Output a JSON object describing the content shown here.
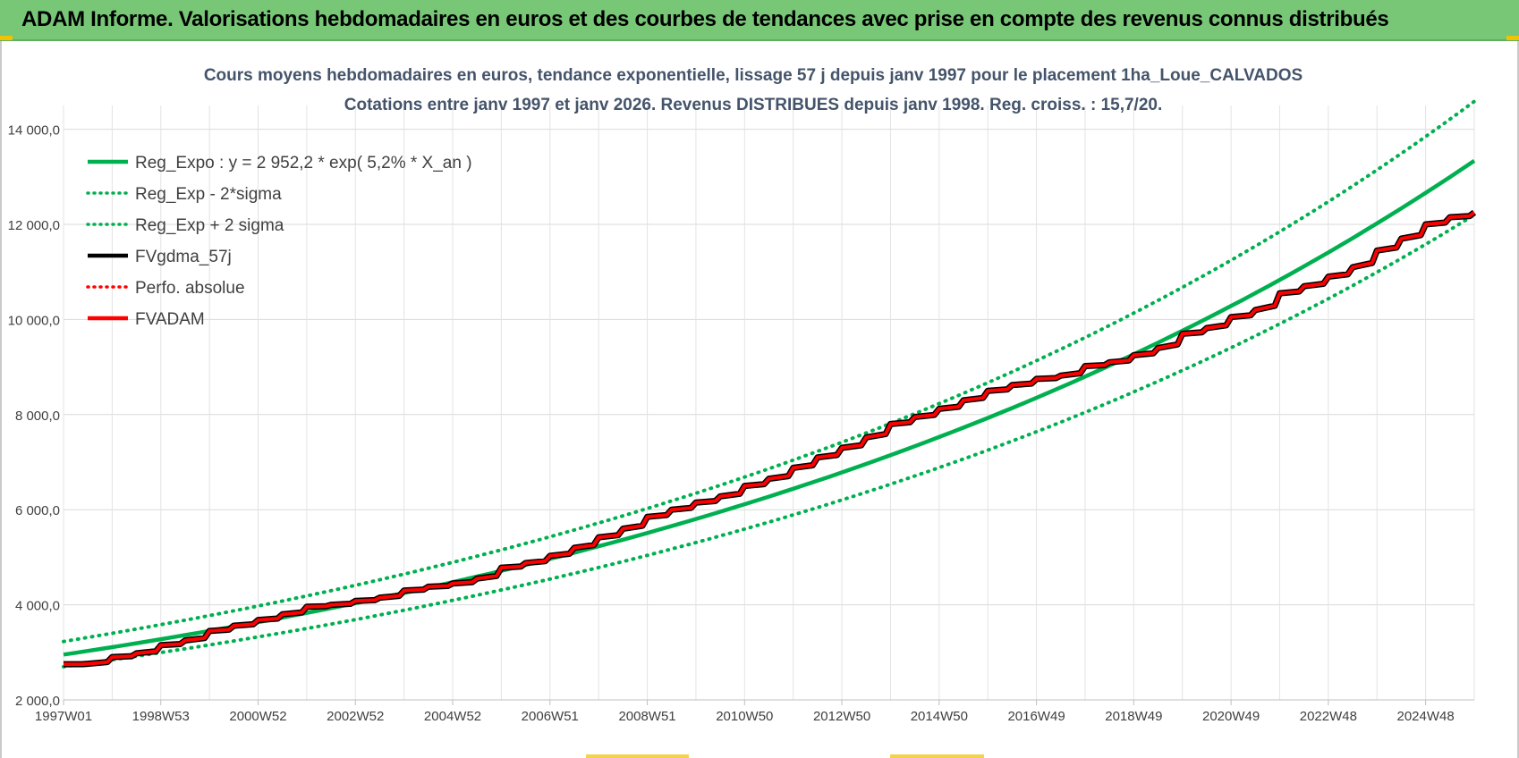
{
  "banner": {
    "title": "ADAM Informe. Valorisations hebdomadaires en euros et des courbes de tendances avec prise en compte des revenus connus distribués",
    "background": "#77c777"
  },
  "chart_data": {
    "type": "line",
    "title": "Cours moyens hebdomadaires en euros, tendance exponentielle, lissage 57 j depuis janv 1997 pour le placement 1ha_Loue_CALVADOS",
    "subtitle": "Cotations entre janv 1997 et janv 2026. Revenus DISTRIBUES depuis janv 1998. Reg. croiss. : 15,7/20.",
    "xlabel": "",
    "ylabel": "",
    "ylim": [
      2000,
      14500
    ],
    "xlim": [
      1997.0,
      2026.0
    ],
    "grid": true,
    "legend_position": "top-left",
    "y_ticks": [
      "2 000,0",
      "4 000,0",
      "6 000,0",
      "8 000,0",
      "10 000,0",
      "12 000,0",
      "14 000,0"
    ],
    "y_tick_values": [
      2000,
      4000,
      6000,
      8000,
      10000,
      12000,
      14000
    ],
    "x_ticks": [
      "1997W01",
      "1998W53",
      "2000W52",
      "2002W52",
      "2004W52",
      "2006W51",
      "2008W51",
      "2010W50",
      "2012W50",
      "2014W50",
      "2016W49",
      "2018W49",
      "2020W49",
      "2022W48",
      "2024W48"
    ],
    "x_tick_values": [
      1997.0,
      1999.0,
      2001.0,
      2003.0,
      2005.0,
      2007.0,
      2009.0,
      2011.0,
      2013.0,
      2015.0,
      2017.0,
      2019.0,
      2021.0,
      2023.0,
      2025.0
    ],
    "regression": {
      "a": 2952.2,
      "rate": 0.052
    },
    "series": [
      {
        "name": "Reg_Expo : y = 2 952,2 * exp( 5,2% *  X_an )",
        "color": "#00b050",
        "style": "solid",
        "x": [
          1997.0,
          2001.0,
          2005.0,
          2009.0,
          2013.0,
          2017.0,
          2021.0,
          2026.0
        ],
        "values": [
          2952,
          3629,
          4461,
          5485,
          6743,
          8290,
          10191,
          13260
        ]
      },
      {
        "name": "Reg_Exp - 2*sigma",
        "color": "#00b050",
        "style": "dotted",
        "x": [
          1997.0,
          2001.0,
          2005.0,
          2009.0,
          2013.0,
          2017.0,
          2021.0,
          2026.0
        ],
        "values": [
          2700,
          3319,
          4080,
          5016,
          6166,
          7581,
          9319,
          12126
        ]
      },
      {
        "name": "Reg_Exp + 2 sigma",
        "color": "#00b050",
        "style": "dotted",
        "x": [
          1997.0,
          2001.0,
          2005.0,
          2009.0,
          2013.0,
          2017.0,
          2021.0,
          2026.0
        ],
        "values": [
          3228,
          3968,
          4878,
          5997,
          7372,
          9063,
          11142,
          14497
        ]
      },
      {
        "name": "FVgdma_57j",
        "color": "#000000",
        "style": "solid",
        "x": [
          1997.0,
          1997.5,
          1998.0,
          1998.5,
          1999.0,
          1999.5,
          2000.0,
          2000.5,
          2001.0,
          2001.5,
          2002.0,
          2002.5,
          2003.0,
          2003.5,
          2004.0,
          2004.5,
          2005.0,
          2005.5,
          2006.0,
          2006.5,
          2007.0,
          2007.5,
          2008.0,
          2008.5,
          2009.0,
          2009.5,
          2010.0,
          2010.5,
          2011.0,
          2011.5,
          2012.0,
          2012.5,
          2013.0,
          2013.5,
          2014.0,
          2014.5,
          2015.0,
          2015.5,
          2016.0,
          2016.5,
          2017.0,
          2017.5,
          2018.0,
          2018.5,
          2019.0,
          2019.5,
          2020.0,
          2020.5,
          2021.0,
          2021.5,
          2022.0,
          2022.5,
          2023.0,
          2023.5,
          2024.0,
          2024.5,
          2025.0,
          2025.5,
          2026.0
        ],
        "values": [
          2750,
          2760,
          2900,
          2980,
          3150,
          3250,
          3450,
          3560,
          3680,
          3800,
          3960,
          4000,
          4080,
          4150,
          4300,
          4380,
          4450,
          4550,
          4780,
          4880,
          5030,
          5200,
          5420,
          5600,
          5850,
          6000,
          6150,
          6280,
          6500,
          6650,
          6880,
          7100,
          7300,
          7520,
          7800,
          7950,
          8120,
          8300,
          8500,
          8620,
          8750,
          8820,
          9020,
          9100,
          9250,
          9400,
          9700,
          9820,
          10050,
          10200,
          10550,
          10700,
          10900,
          11100,
          11450,
          11700,
          12000,
          12150,
          12250
        ]
      },
      {
        "name": "Perfo. absolue",
        "color": "#ff0000",
        "style": "dotted",
        "x": [],
        "values": []
      },
      {
        "name": "FVADAM",
        "color": "#ff0000",
        "style": "solid",
        "x": [
          1997.0,
          1997.5,
          1998.0,
          1998.5,
          1999.0,
          1999.5,
          2000.0,
          2000.5,
          2001.0,
          2001.5,
          2002.0,
          2002.5,
          2003.0,
          2003.5,
          2004.0,
          2004.5,
          2005.0,
          2005.5,
          2006.0,
          2006.5,
          2007.0,
          2007.5,
          2008.0,
          2008.5,
          2009.0,
          2009.5,
          2010.0,
          2010.5,
          2011.0,
          2011.5,
          2012.0,
          2012.5,
          2013.0,
          2013.5,
          2014.0,
          2014.5,
          2015.0,
          2015.5,
          2016.0,
          2016.5,
          2017.0,
          2017.5,
          2018.0,
          2018.5,
          2019.0,
          2019.5,
          2020.0,
          2020.5,
          2021.0,
          2021.5,
          2022.0,
          2022.5,
          2023.0,
          2023.5,
          2024.0,
          2024.5,
          2025.0,
          2025.5,
          2026.0
        ],
        "values": [
          2750,
          2760,
          2900,
          2980,
          3150,
          3250,
          3450,
          3560,
          3680,
          3800,
          3960,
          4000,
          4080,
          4150,
          4300,
          4380,
          4450,
          4550,
          4780,
          4880,
          5030,
          5200,
          5420,
          5600,
          5850,
          6000,
          6150,
          6280,
          6500,
          6650,
          6880,
          7100,
          7300,
          7520,
          7800,
          7950,
          8120,
          8300,
          8500,
          8620,
          8750,
          8820,
          9020,
          9100,
          9250,
          9400,
          9700,
          9820,
          10050,
          10200,
          10550,
          10700,
          10900,
          11100,
          11450,
          11700,
          12000,
          12150,
          12250
        ]
      }
    ]
  }
}
